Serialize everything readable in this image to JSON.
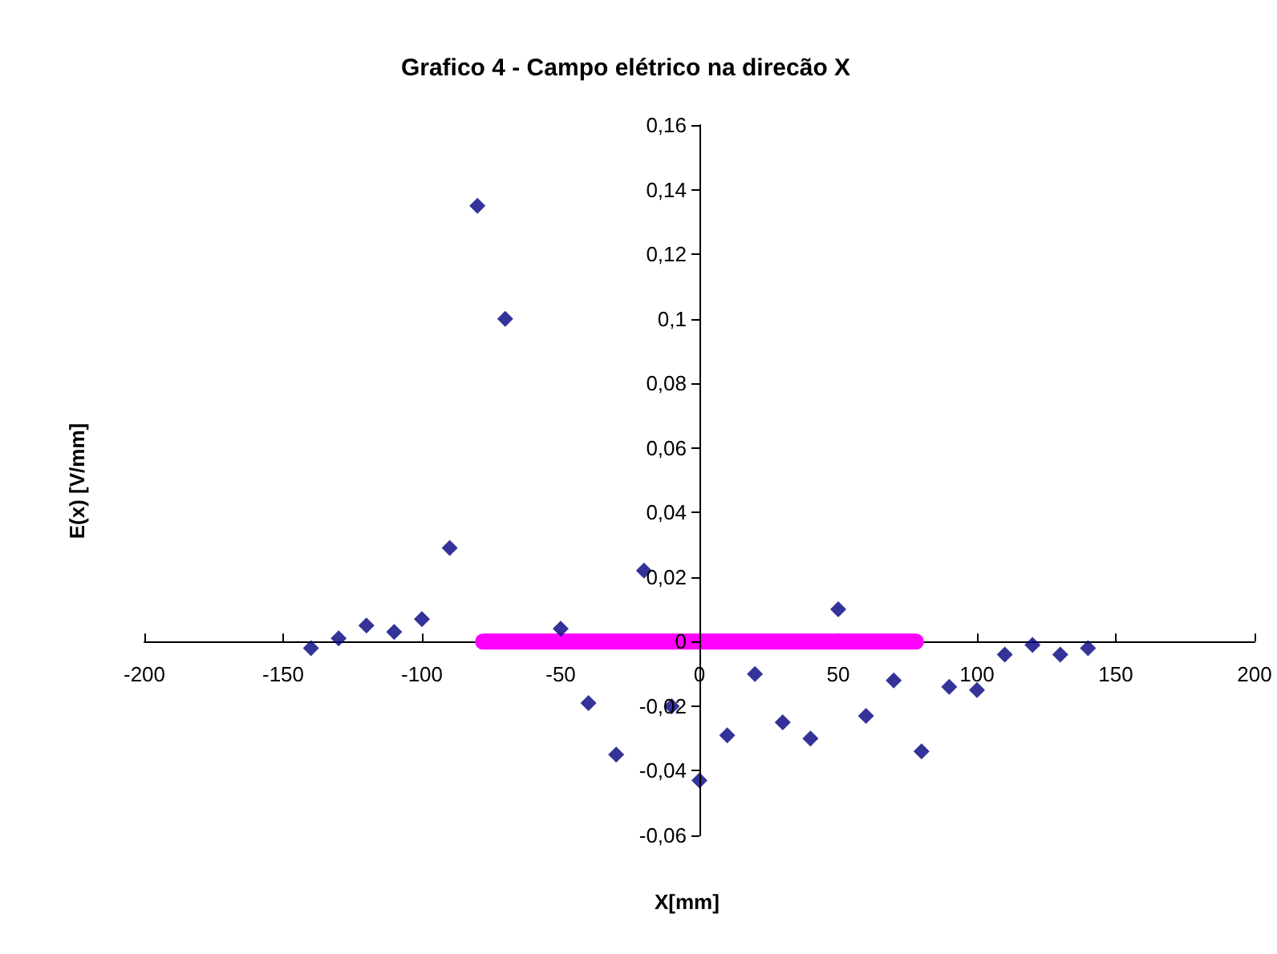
{
  "chart_data": {
    "type": "scatter",
    "title": "Grafico 4 - Campo elétrico na direcão X",
    "xlabel": "X[mm]",
    "ylabel": "E(x) [V/mm]",
    "x": [
      -140,
      -130,
      -120,
      -110,
      -100,
      -90,
      -80,
      -70,
      -50,
      -40,
      -30,
      -20,
      -10,
      0,
      10,
      20,
      30,
      40,
      50,
      60,
      70,
      80,
      90,
      100,
      110,
      120,
      130,
      140
    ],
    "series": [
      {
        "color": "#000080",
        "marker": "diamond",
        "values": [
          -0.002,
          0.001,
          0.005,
          0.003,
          0.007,
          0.029,
          0.135,
          0.1,
          0.004,
          -0.019,
          -0.035,
          0.022,
          -0.02,
          -0.043,
          -0.029,
          -0.01,
          -0.025,
          -0.03,
          0.01,
          -0.023,
          -0.012,
          -0.034,
          -0.014,
          -0.015,
          -0.004,
          -0.001,
          -0.004,
          -0.002
        ]
      },
      {
        "type": "line",
        "color": "#ff00ff",
        "marker": "none",
        "x": [
          -78,
          78
        ],
        "values": [
          0,
          0
        ]
      }
    ],
    "xlim": [
      -200,
      200
    ],
    "xticks": [
      -200,
      -150,
      -100,
      -50,
      0,
      50,
      100,
      150,
      200
    ],
    "ylim": [
      -0.06,
      0.16
    ],
    "yticks": [
      {
        "value": -0.06,
        "label": "-0,06"
      },
      {
        "value": -0.04,
        "label": "-0,04"
      },
      {
        "value": -0.02,
        "label": "-0,02"
      },
      {
        "value": 0,
        "label": "0"
      },
      {
        "value": 0.02,
        "label": "0,02"
      },
      {
        "value": 0.04,
        "label": "0,04"
      },
      {
        "value": 0.06,
        "label": "0,06"
      },
      {
        "value": 0.08,
        "label": "0,08"
      },
      {
        "value": 0.1,
        "label": "0,1"
      },
      {
        "value": 0.12,
        "label": "0,12"
      },
      {
        "value": 0.14,
        "label": "0,14"
      },
      {
        "value": 0.16,
        "label": "0,16"
      }
    ],
    "grid": false
  }
}
